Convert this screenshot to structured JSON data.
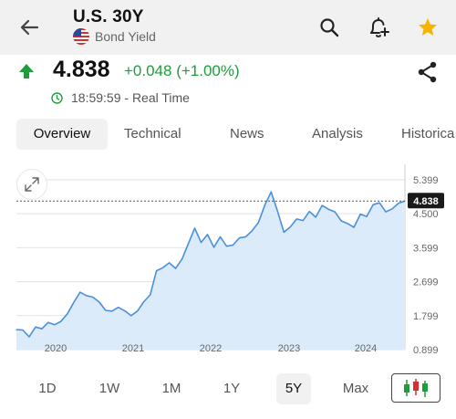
{
  "header": {
    "title": "U.S. 30Y",
    "subtitle": "Bond Yield"
  },
  "quote": {
    "price": "4.838",
    "change": "+0.048 (+1.00%)",
    "time": "18:59:59 - Real Time",
    "up_color": "#1f9d3b"
  },
  "tabs": [
    {
      "label": "Overview",
      "active": true
    },
    {
      "label": "Technical",
      "active": false
    },
    {
      "label": "News",
      "active": false
    },
    {
      "label": "Analysis",
      "active": false
    },
    {
      "label": "Historica",
      "active": false
    }
  ],
  "ranges": [
    {
      "label": "1D",
      "active": false
    },
    {
      "label": "1W",
      "active": false
    },
    {
      "label": "1M",
      "active": false
    },
    {
      "label": "1Y",
      "active": false
    },
    {
      "label": "5Y",
      "active": true
    },
    {
      "label": "Max",
      "active": false
    }
  ],
  "icons": {
    "back": "arrow-left-icon",
    "search": "search-icon",
    "alert": "add-alert-bell-icon",
    "favorite": "star-icon",
    "share": "share-icon",
    "expand": "expand-icon",
    "candles": "candlestick-icon"
  },
  "colors": {
    "accent_star": "#f5b400",
    "line": "#4a90d9",
    "fill": "#dcebf9"
  },
  "chart_data": {
    "type": "area",
    "x_ticks": [
      "2020",
      "2021",
      "2022",
      "2023",
      "2024"
    ],
    "y_ticks": [
      "5.399",
      "4.500",
      "3.599",
      "2.699",
      "1.799",
      "0.899"
    ],
    "ylim": [
      0.899,
      5.399
    ],
    "last_value_label": "4.838",
    "last_value": 4.838,
    "series": [
      {
        "values": [
          1.43,
          1.42,
          1.24,
          1.5,
          1.45,
          1.62,
          1.56,
          1.65,
          1.85,
          2.15,
          2.42,
          2.33,
          2.29,
          2.16,
          1.94,
          1.92,
          2.02,
          1.93,
          1.8,
          1.92,
          2.17,
          2.35,
          2.99,
          3.07,
          3.2,
          3.05,
          3.3,
          3.71,
          4.12,
          3.74,
          3.95,
          3.61,
          3.89,
          3.64,
          3.67,
          3.86,
          3.89,
          4.05,
          4.27,
          4.73,
          5.08,
          4.57,
          4.01,
          4.15,
          4.36,
          4.32,
          4.56,
          4.41,
          4.72,
          4.62,
          4.55,
          4.31,
          4.24,
          4.14,
          4.49,
          4.43,
          4.74,
          4.79,
          4.55,
          4.63,
          4.78,
          4.838
        ]
      }
    ],
    "grid": true,
    "legend": "none"
  }
}
